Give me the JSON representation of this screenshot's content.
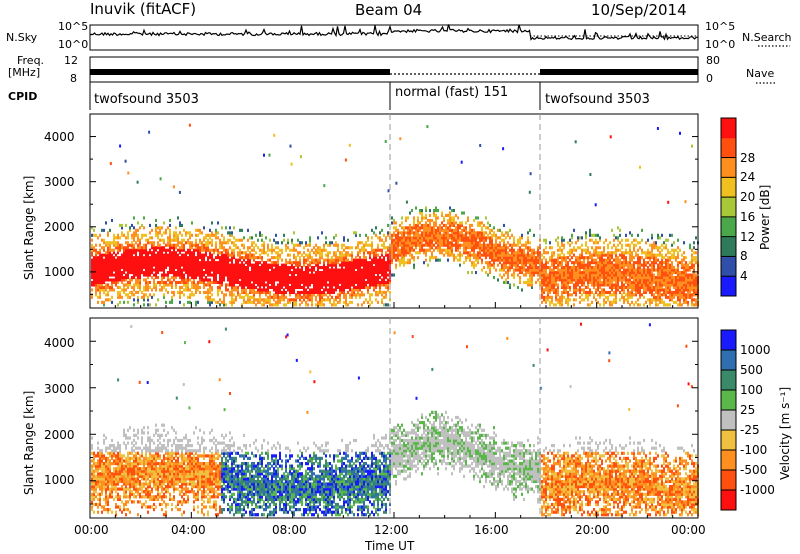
{
  "header": {
    "station": "Inuvik (fitACF)",
    "beam": "Beam 04",
    "date": "10/Sep/2014"
  },
  "panels": {
    "nsky_label": "N.Sky",
    "nsearch_label": "N.Search",
    "nsky_ticks": [
      "10^5",
      "10^0"
    ],
    "nsearch_ticks": [
      "10^5",
      "10^0"
    ],
    "freq_label": "Freq.",
    "freq_unit": "[MHz]",
    "freq_ticks": [
      "12",
      "8"
    ],
    "nave_label": "Nave",
    "nave_ticks": [
      "80",
      "0"
    ],
    "cpid_label": "CPID",
    "cpid_segments": [
      {
        "label": "twofsound 3503"
      },
      {
        "label": "normal (fast) 151"
      },
      {
        "label": "twofsound 3503"
      }
    ]
  },
  "chart_data": [
    {
      "type": "heatmap",
      "name": "power-panel",
      "ylabel": "Slant Range [km]",
      "y_ticks": [
        "1000",
        "2000",
        "3000",
        "4000"
      ],
      "ylim": [
        200,
        4500
      ],
      "colorbar_label": "Power [dB]",
      "colorbar_ticks": [
        "4",
        "8",
        "12",
        "16",
        "20",
        "24",
        "28"
      ],
      "colorbar_range": [
        0,
        32
      ],
      "colors": [
        "#1a1aff",
        "#2f4fa8",
        "#2f7a5a",
        "#4aa84a",
        "#a8c83a",
        "#f0c020",
        "#ff9020",
        "#ff5010",
        "#ff1010"
      ]
    },
    {
      "type": "heatmap",
      "name": "velocity-panel",
      "ylabel": "Slant Range [km]",
      "y_ticks": [
        "1000",
        "2000",
        "3000",
        "4000"
      ],
      "ylim": [
        200,
        4500
      ],
      "colorbar_label": "Velocity [m s⁻¹]",
      "colorbar_ticks": [
        "1000",
        "500",
        "100",
        "25",
        "-25",
        "-100",
        "-500",
        "-1000"
      ],
      "colors": [
        "#1a1aff",
        "#2f6fb0",
        "#3a8a6a",
        "#5ab84a",
        "#c0c0c0",
        "#f0c040",
        "#ff9020",
        "#ff5010",
        "#ff1010"
      ]
    }
  ],
  "xaxis": {
    "label": "Time UT",
    "ticks": [
      "00:00",
      "04:00",
      "08:00",
      "12:00",
      "16:00",
      "20:00",
      "00:00"
    ]
  }
}
